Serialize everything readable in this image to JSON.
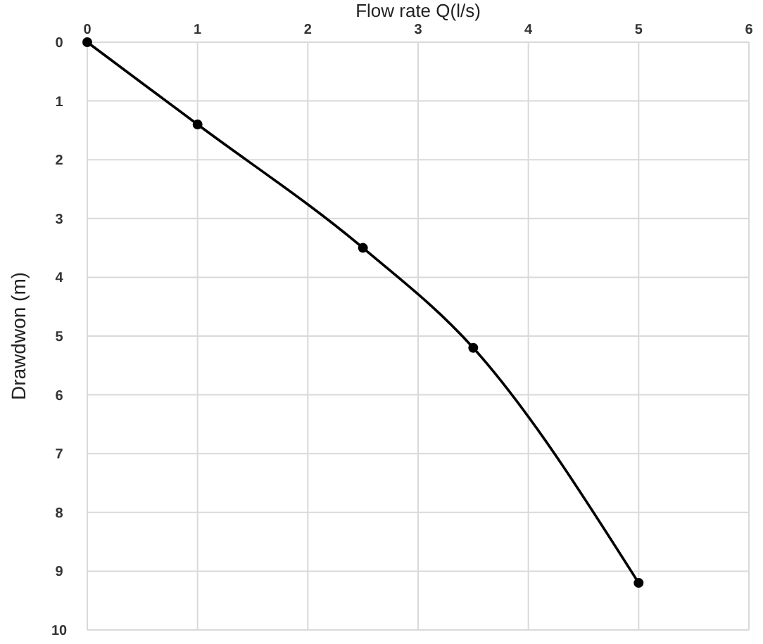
{
  "chart_data": {
    "type": "line",
    "xlabel": "Flow rate Q(l/s)",
    "ylabel": "Drawdwon (m)",
    "x": [
      0,
      1,
      2.5,
      3.5,
      5
    ],
    "series": [
      {
        "color": "#000000",
        "values": [
          0,
          1.4,
          3.5,
          5.2,
          9.2
        ]
      }
    ],
    "xlim": [
      0,
      6
    ],
    "xticks": [
      0,
      1,
      2,
      3,
      4,
      5,
      6
    ],
    "ylim": [
      10,
      0
    ],
    "yticks": [
      0,
      1,
      2,
      3,
      4,
      5,
      6,
      7,
      8,
      9,
      10
    ],
    "grid": true,
    "marker": "circle",
    "line_style": "solid"
  }
}
